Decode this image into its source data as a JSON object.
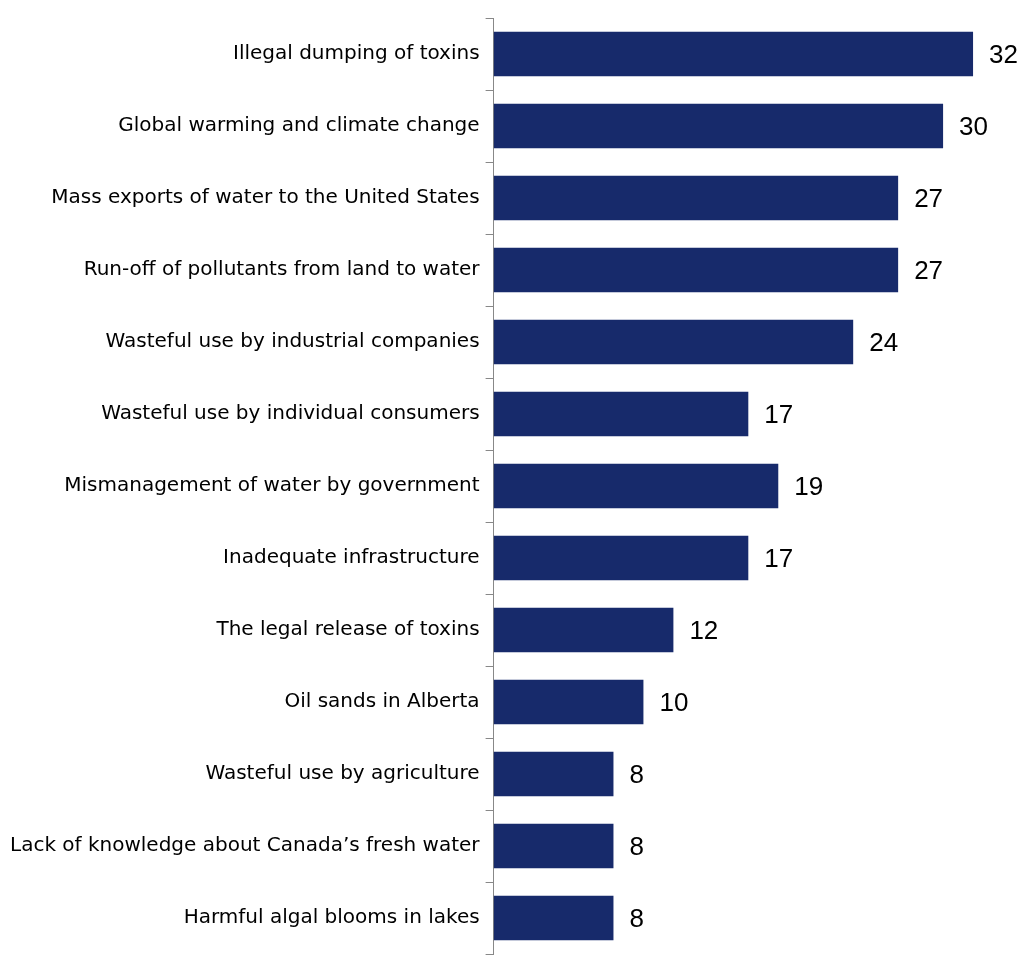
{
  "chart_data": {
    "type": "bar",
    "orientation": "horizontal",
    "tick_labels": "y",
    "data_labels": true,
    "color": "#172a6b",
    "categories": [
      "Illegal dumping of toxins",
      "Global warming and climate change",
      "Mass exports of water to the United States",
      "Run-off of pollutants from land to water",
      "Wasteful use by industrial companies",
      "Wasteful use by individual consumers",
      "Mismanagement of water by government",
      "Inadequate infrastructure",
      "The legal release of toxins",
      "Oil sands in Alberta",
      "Wasteful use by agriculture",
      "Lack of knowledge about Canada’s fresh water",
      "Harmful algal blooms in lakes"
    ],
    "values": [
      32,
      30,
      27,
      27,
      24,
      17,
      19,
      17,
      12,
      10,
      8,
      8,
      8
    ]
  }
}
